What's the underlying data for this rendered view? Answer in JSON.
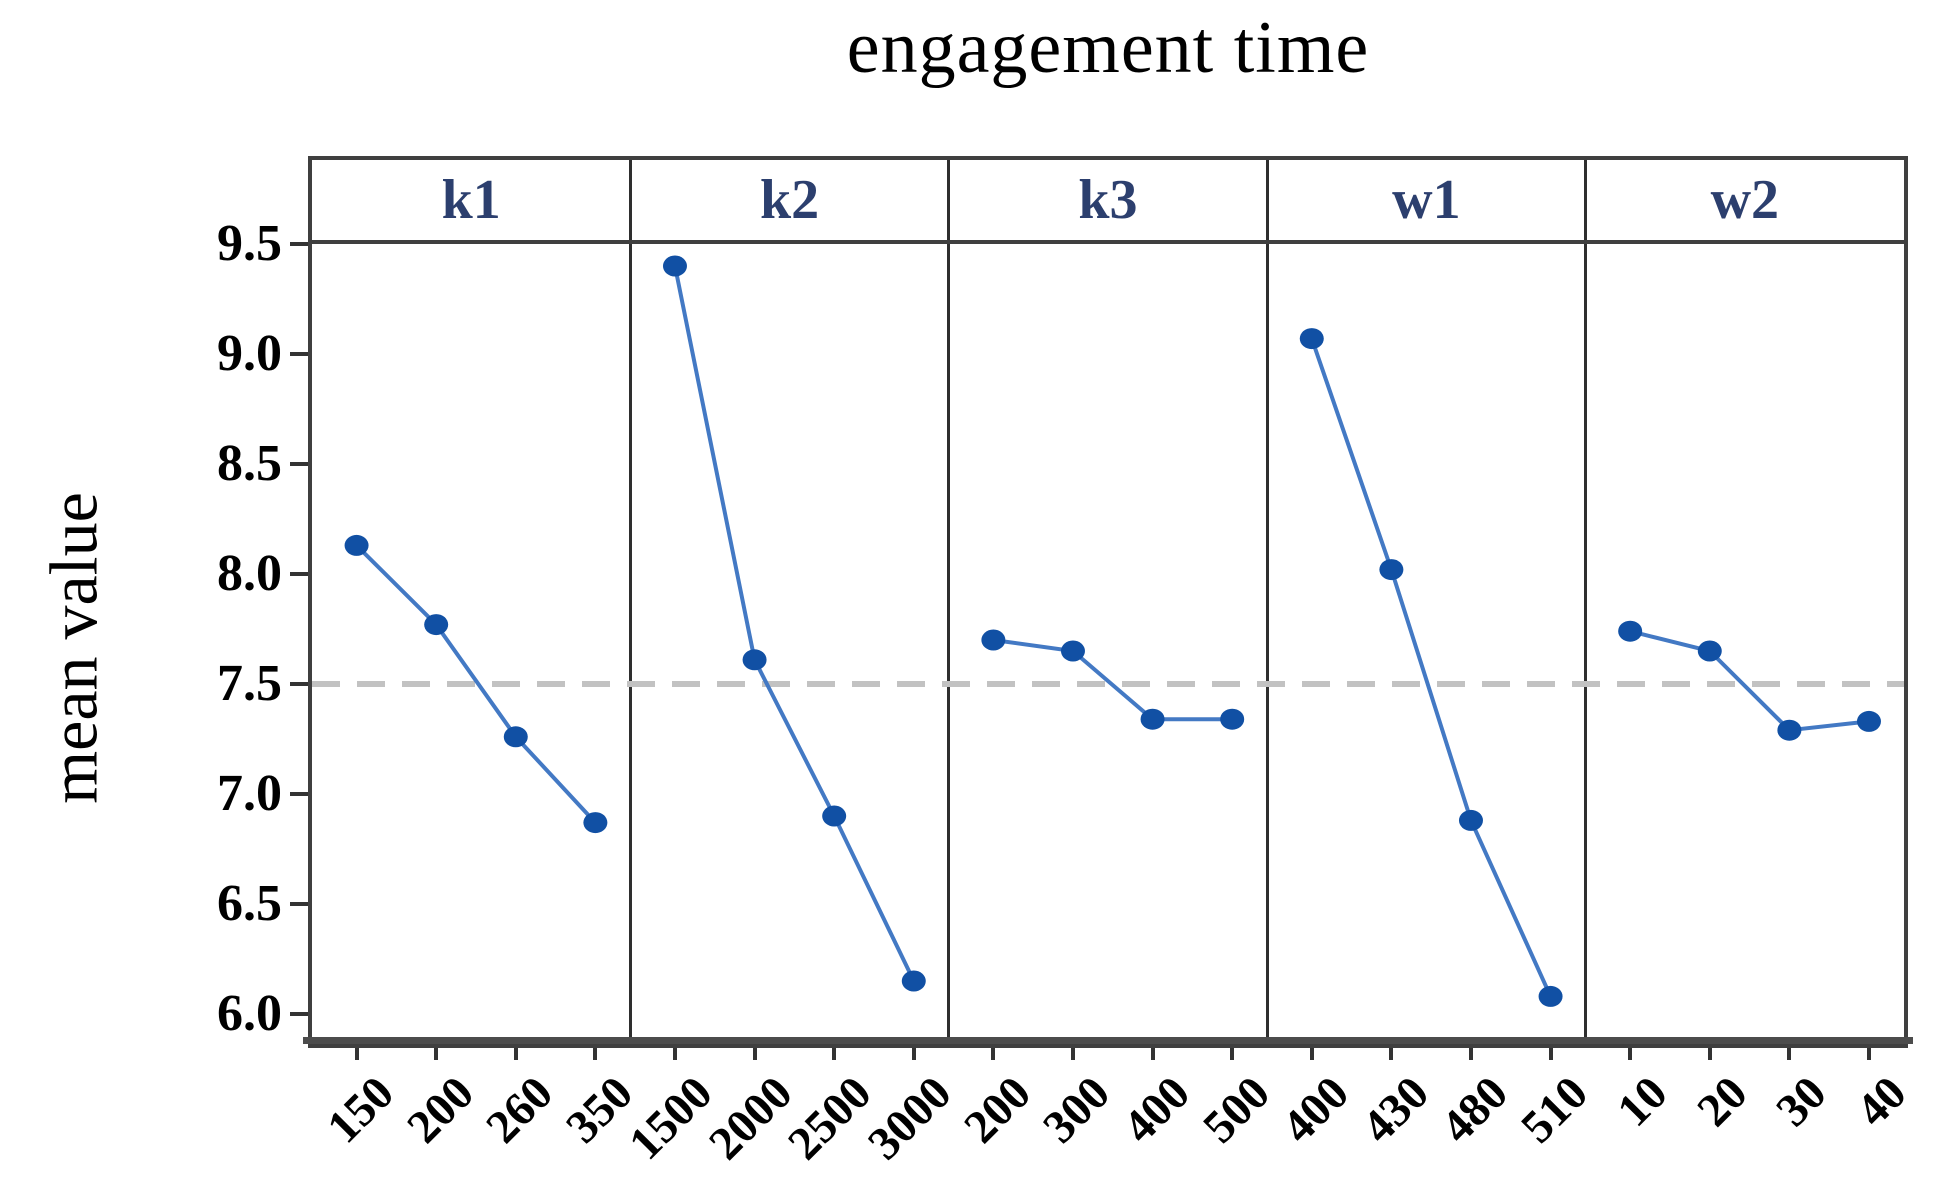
{
  "chart_data": {
    "type": "line",
    "title": "engagement time",
    "ylabel": "mean value",
    "grid": false,
    "legend_position": "none",
    "ylim": [
      5.88,
      9.5
    ],
    "yticks": [
      "9.5",
      "9.0",
      "8.5",
      "8.0",
      "7.5",
      "7.0",
      "6.5",
      "6.0"
    ],
    "reference_line_value": 7.5,
    "panels": [
      {
        "label": "k1",
        "categories": [
          "150",
          "200",
          "260",
          "350"
        ],
        "values": [
          8.13,
          7.77,
          7.26,
          6.87
        ]
      },
      {
        "label": "k2",
        "categories": [
          "1500",
          "2000",
          "2500",
          "3000"
        ],
        "values": [
          9.4,
          7.61,
          6.9,
          6.15
        ]
      },
      {
        "label": "k3",
        "categories": [
          "200",
          "300",
          "400",
          "500"
        ],
        "values": [
          7.7,
          7.65,
          7.34,
          7.34
        ]
      },
      {
        "label": "w1",
        "categories": [
          "400",
          "430",
          "480",
          "510"
        ],
        "values": [
          9.07,
          8.02,
          6.88,
          6.08
        ]
      },
      {
        "label": "w2",
        "categories": [
          "10",
          "20",
          "30",
          "40"
        ],
        "values": [
          7.74,
          7.65,
          7.29,
          7.33
        ]
      }
    ],
    "colors": {
      "marker": "#1150a4",
      "line": "#4379c4",
      "reference_line": "#c2c2c2",
      "frame": "#3f3f3f",
      "panel_label": "#2c3f6e",
      "text": "#000000"
    }
  }
}
